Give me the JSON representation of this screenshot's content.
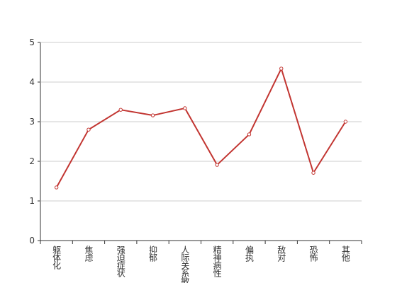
{
  "chart_data": {
    "type": "line",
    "categories": [
      "躯体化",
      "焦虑",
      "强迫症状",
      "抑郁",
      "人际关系敏感",
      "精神病性",
      "偏执",
      "敌对",
      "恐怖",
      "其他"
    ],
    "values": [
      1.34,
      2.8,
      3.3,
      3.16,
      3.34,
      1.91,
      2.68,
      4.34,
      1.71,
      3.0
    ],
    "color": "#c23531",
    "ylim": [
      0,
      5
    ],
    "yticks": [
      0,
      1,
      2,
      3,
      4,
      5
    ],
    "grid": true
  }
}
